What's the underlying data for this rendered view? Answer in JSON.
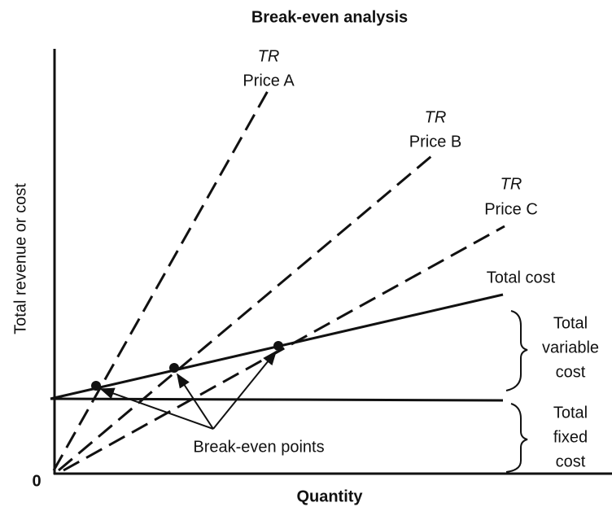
{
  "title": "Break-even analysis",
  "axes": {
    "y_label": "Total revenue or cost",
    "x_label": "Quantity",
    "origin": "0"
  },
  "lines": [
    {
      "tag": "TR",
      "label": "Price A"
    },
    {
      "tag": "TR",
      "label": "Price B"
    },
    {
      "tag": "TR",
      "label": "Price C"
    },
    {
      "label": "Total cost"
    }
  ],
  "braces": [
    {
      "lines": [
        "Total",
        "variable",
        "cost"
      ]
    },
    {
      "lines": [
        "Total",
        "fixed",
        "cost"
      ]
    }
  ],
  "annotation": "Break-even points"
}
